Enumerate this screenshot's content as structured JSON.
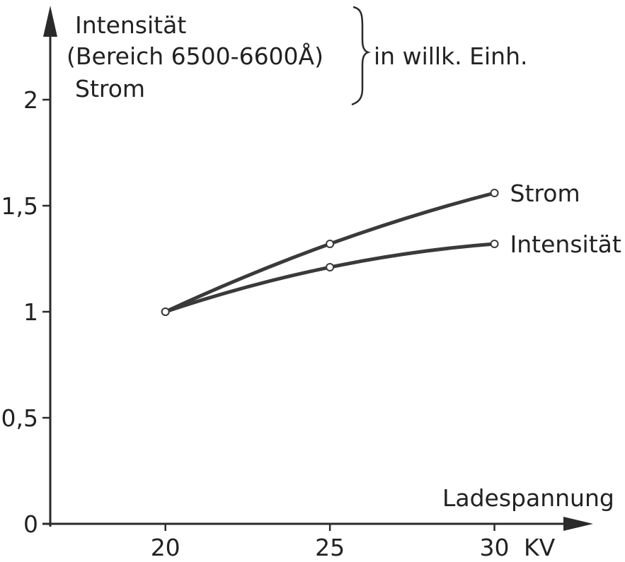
{
  "chart_data": {
    "type": "line",
    "x": [
      20,
      25,
      30
    ],
    "xticks": [
      "20",
      "25",
      "30"
    ],
    "yticks": [
      "0",
      "0,5",
      "1",
      "1,5",
      "2"
    ],
    "ytick_values": [
      0,
      0.5,
      1,
      1.5,
      2
    ],
    "xlim": [
      16.5,
      33
    ],
    "ylim": [
      0,
      2.35
    ],
    "series": [
      {
        "name": "Strom",
        "values": [
          1.0,
          1.32,
          1.56
        ]
      },
      {
        "name": "Intensität",
        "values": [
          1.0,
          1.21,
          1.32
        ]
      }
    ],
    "ylabel": {
      "line1": "Intensität",
      "line2": "(Bereich 6500-6600Å)",
      "line3": "Strom",
      "unit": "in willk. Einh."
    },
    "xlabel": "Ladespannung",
    "xunit": "KV",
    "grid": false,
    "colors": {
      "line": "#3a3a3a",
      "axis": "#2a2a2a",
      "marker_fill": "#ffffff"
    }
  }
}
